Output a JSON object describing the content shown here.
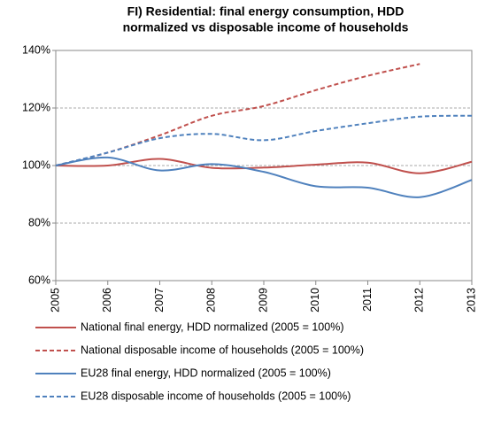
{
  "chart_data": {
    "type": "line",
    "title": [
      "FI) Residential: final energy consumption, HDD",
      "normalized vs disposable income of households"
    ],
    "x": [
      2005,
      2006,
      2007,
      2008,
      2009,
      2010,
      2011,
      2012,
      2013
    ],
    "xlim": [
      2005,
      2013
    ],
    "xticks": [
      2005,
      2006,
      2007,
      2008,
      2009,
      2010,
      2011,
      2012,
      2013
    ],
    "ylim": [
      60,
      140
    ],
    "yticks": [
      {
        "value": 60,
        "label": "60%"
      },
      {
        "value": 80,
        "label": "80%"
      },
      {
        "value": 100,
        "label": "100%"
      },
      {
        "value": 120,
        "label": "120%"
      },
      {
        "value": 140,
        "label": "140%"
      }
    ],
    "grid": true,
    "legend": "bottom",
    "series": [
      {
        "name": "National final energy, HDD normalized (2005 = 100%)",
        "color": "#c0504d",
        "dashed": false,
        "values": [
          100,
          100,
          102.3,
          99.2,
          99.3,
          100.3,
          101,
          97.3,
          101.3
        ]
      },
      {
        "name": "National disposable income of households (2005 = 100%)",
        "color": "#c0504d",
        "dashed": true,
        "values": [
          100,
          104.5,
          110.5,
          117.3,
          120.7,
          126.2,
          131.2,
          135.3,
          null
        ]
      },
      {
        "name": "EU28 final energy, HDD normalized (2005 = 100%)",
        "color": "#4f81bd",
        "dashed": false,
        "values": [
          100,
          102.8,
          98.3,
          100.5,
          97.8,
          92.8,
          92.3,
          89,
          95
        ]
      },
      {
        "name": "EU28 disposable income of households (2005 = 100%)",
        "color": "#4f81bd",
        "dashed": true,
        "values": [
          100,
          104.5,
          109.5,
          111,
          108.8,
          112,
          114.7,
          117,
          117.3
        ]
      }
    ]
  }
}
